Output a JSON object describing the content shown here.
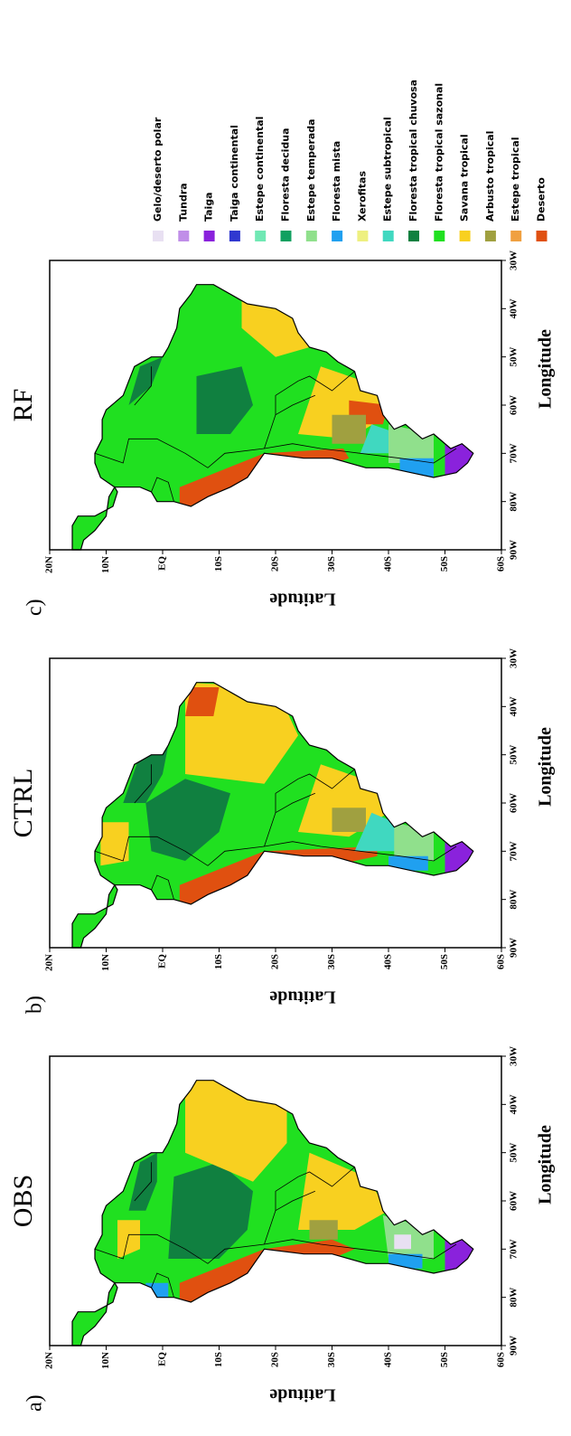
{
  "panels": [
    {
      "label": "a)",
      "title": "OBS",
      "y_axis_label": "Latitude",
      "x_axis_label": "Longitude",
      "xlim": [
        -90,
        -30
      ],
      "ylim": [
        -60,
        20
      ],
      "xticks": [
        {
          "value": -90,
          "label": "90W"
        },
        {
          "value": -80,
          "label": "80W"
        },
        {
          "value": -70,
          "label": "70W"
        },
        {
          "value": -60,
          "label": "60W"
        },
        {
          "value": -50,
          "label": "50W"
        },
        {
          "value": -40,
          "label": "40W"
        },
        {
          "value": -30,
          "label": "30W"
        }
      ],
      "yticks": [
        {
          "value": 20,
          "label": "20N"
        },
        {
          "value": 10,
          "label": "10N"
        },
        {
          "value": 0,
          "label": "EQ"
        },
        {
          "value": -10,
          "label": "10S"
        },
        {
          "value": -20,
          "label": "20S"
        },
        {
          "value": -30,
          "label": "30S"
        },
        {
          "value": -40,
          "label": "40S"
        },
        {
          "value": -50,
          "label": "50S"
        },
        {
          "value": -60,
          "label": "60S"
        }
      ]
    },
    {
      "label": "b)",
      "title": "CTRL",
      "y_axis_label": "Latitude",
      "x_axis_label": "Longitude",
      "xlim": [
        -90,
        -30
      ],
      "ylim": [
        -60,
        20
      ],
      "xticks": [
        {
          "value": -90,
          "label": "90W"
        },
        {
          "value": -80,
          "label": "80W"
        },
        {
          "value": -70,
          "label": "70W"
        },
        {
          "value": -60,
          "label": "60W"
        },
        {
          "value": -50,
          "label": "50W"
        },
        {
          "value": -40,
          "label": "40W"
        },
        {
          "value": -30,
          "label": "30W"
        }
      ],
      "yticks": [
        {
          "value": 20,
          "label": "20N"
        },
        {
          "value": 10,
          "label": "10N"
        },
        {
          "value": 0,
          "label": "EQ"
        },
        {
          "value": -10,
          "label": "10S"
        },
        {
          "value": -20,
          "label": "20S"
        },
        {
          "value": -30,
          "label": "30S"
        },
        {
          "value": -40,
          "label": "40S"
        },
        {
          "value": -50,
          "label": "50S"
        },
        {
          "value": -60,
          "label": "60S"
        }
      ]
    },
    {
      "label": "c)",
      "title": "RF",
      "y_axis_label": "Latitude",
      "x_axis_label": "Longitude",
      "xlim": [
        -90,
        -30
      ],
      "ylim": [
        -60,
        20
      ],
      "xticks": [
        {
          "value": -90,
          "label": "90W"
        },
        {
          "value": -80,
          "label": "80W"
        },
        {
          "value": -70,
          "label": "70W"
        },
        {
          "value": -60,
          "label": "60W"
        },
        {
          "value": -50,
          "label": "50W"
        },
        {
          "value": -40,
          "label": "40W"
        },
        {
          "value": -30,
          "label": "30W"
        }
      ],
      "yticks": [
        {
          "value": 20,
          "label": "20N"
        },
        {
          "value": 10,
          "label": "10N"
        },
        {
          "value": 0,
          "label": "EQ"
        },
        {
          "value": -10,
          "label": "10S"
        },
        {
          "value": -20,
          "label": "20S"
        },
        {
          "value": -30,
          "label": "30S"
        },
        {
          "value": -40,
          "label": "40S"
        },
        {
          "value": -50,
          "label": "50S"
        },
        {
          "value": -60,
          "label": "60S"
        }
      ]
    }
  ],
  "legend": [
    {
      "label": "Gelo/deserto polar",
      "color": "#e8e0f2"
    },
    {
      "label": "Tundra",
      "color": "#c08ee8"
    },
    {
      "label": "Taiga",
      "color": "#8a22dc"
    },
    {
      "label": "Taiga continental",
      "color": "#3038d0"
    },
    {
      "label": "Estepe continental",
      "color": "#70e8b4"
    },
    {
      "label": "Floresta decidua",
      "color": "#10a060"
    },
    {
      "label": "Estepe temperada",
      "color": "#90e08c"
    },
    {
      "label": "Floresta mista",
      "color": "#20a0f0"
    },
    {
      "label": "Xerofitas",
      "color": "#eef080"
    },
    {
      "label": "Estepe subtropical",
      "color": "#40d8c0"
    },
    {
      "label": "Floresta tropical chuvosa",
      "color": "#108040"
    },
    {
      "label": "Floresta tropical sazonal",
      "color": "#20e020"
    },
    {
      "label": "Savana tropical",
      "color": "#f8d020"
    },
    {
      "label": "Arbusto tropical",
      "color": "#a0a040"
    },
    {
      "label": "Estepe tropical",
      "color": "#f0a040"
    },
    {
      "label": "Deserto",
      "color": "#e05010"
    }
  ]
}
